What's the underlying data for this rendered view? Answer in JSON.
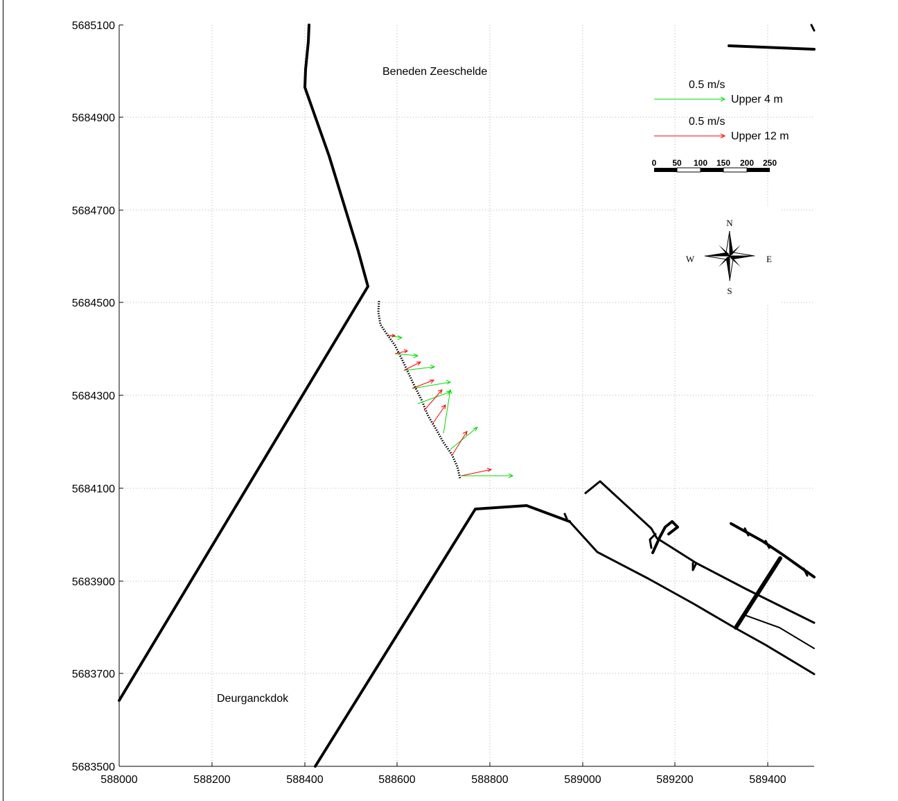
{
  "map": {
    "x_ticks": [
      "588000",
      "588200",
      "588400",
      "588600",
      "588800",
      "589000",
      "589200",
      "589400"
    ],
    "y_ticks": [
      "5685100",
      "5684900",
      "5684700",
      "5684500",
      "5684300",
      "5684100",
      "5683900",
      "5683700",
      "5683500"
    ],
    "labels": {
      "river": "Beneden Zeeschelde",
      "dock": "Deurganckdok"
    }
  },
  "legend": {
    "green": {
      "magnitude": "0.5 m/s",
      "label": "Upper 4 m",
      "color": "#00dd00"
    },
    "red": {
      "magnitude": "0.5 m/s",
      "label": "Upper 12 m",
      "color": "#ff0000"
    }
  },
  "scale_bar": {
    "ticks": [
      "0",
      "50",
      "100",
      "150",
      "200",
      "250"
    ]
  },
  "compass": {
    "north": "N",
    "south": "S",
    "east": "E",
    "west": "W"
  }
}
